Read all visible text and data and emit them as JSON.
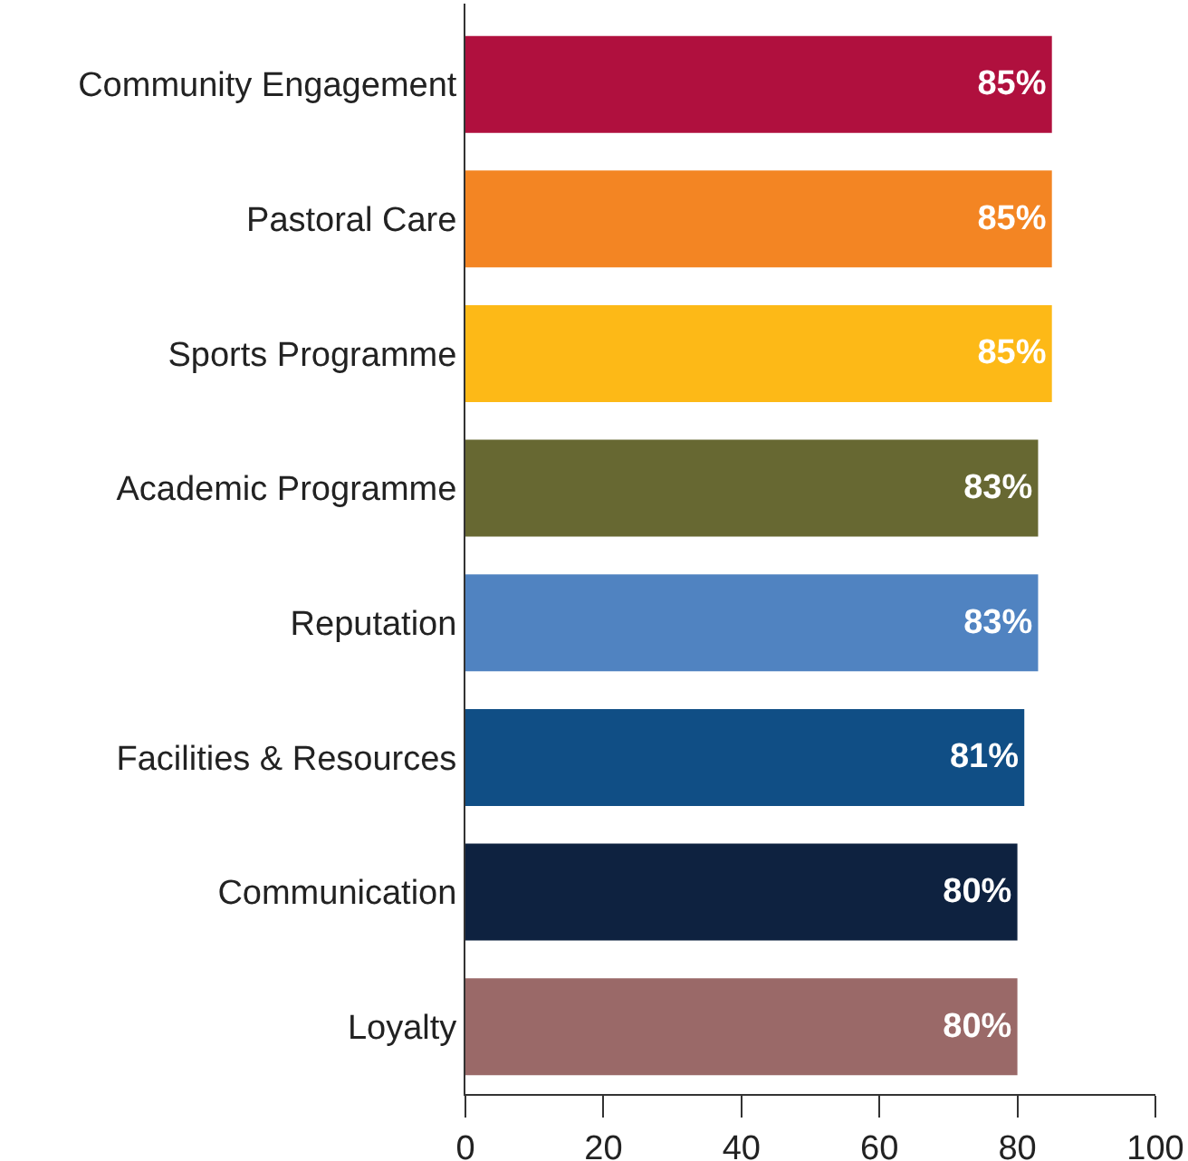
{
  "chart_data": {
    "type": "bar",
    "orientation": "horizontal",
    "categories": [
      "Community Engagement",
      "Pastoral Care",
      "Sports Programme",
      "Academic Programme",
      "Reputation",
      "Facilities & Resources",
      "Communication",
      "Loyalty"
    ],
    "values": [
      85,
      85,
      85,
      83,
      83,
      81,
      80,
      80
    ],
    "colors": [
      "#b0103e",
      "#f38523",
      "#fdb917",
      "#676832",
      "#5083c1",
      "#104e85",
      "#0e2240",
      "#9a6968"
    ],
    "value_labels": [
      "85%",
      "85%",
      "85%",
      "83%",
      "83%",
      "81%",
      "80%",
      "80%"
    ],
    "xlim": [
      0,
      100
    ],
    "xticks": [
      0,
      20,
      40,
      60,
      80,
      100
    ]
  }
}
